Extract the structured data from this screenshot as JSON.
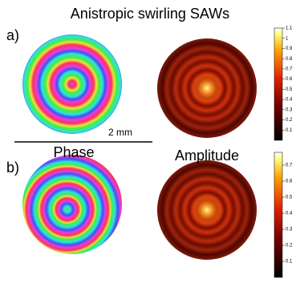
{
  "title": "Anistropic swirling SAWs",
  "panels": [
    {
      "label": "a)"
    },
    {
      "label": "b)"
    }
  ],
  "scale_bar": "2 mm",
  "column_titles": [
    "Phase",
    "Amplitude"
  ],
  "colorbars": [
    {
      "lim": [
        0,
        1.1
      ],
      "ticks": [
        0.1,
        0.2,
        0.3,
        0.4,
        0.5,
        0.6,
        0.7,
        0.8,
        0.9,
        1,
        1.1
      ]
    },
    {
      "lim": [
        0,
        0.78
      ],
      "ticks": [
        0.1,
        0.2,
        0.3,
        0.4,
        0.5,
        0.6,
        0.7
      ]
    }
  ]
}
